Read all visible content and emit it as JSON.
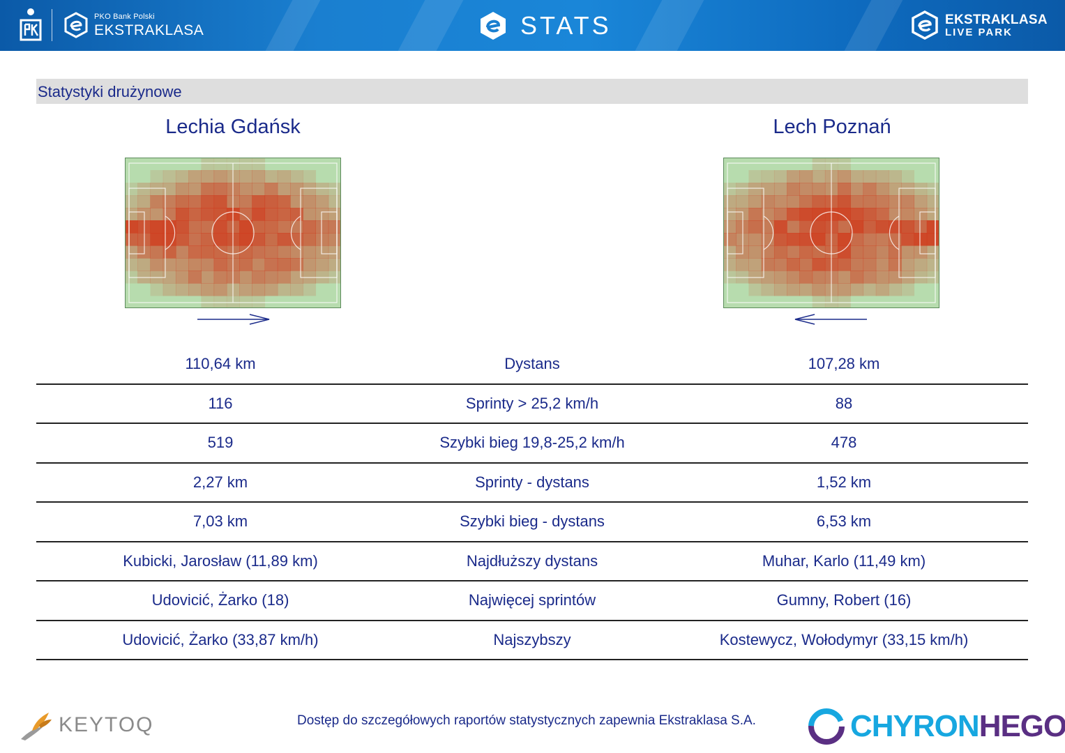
{
  "header": {
    "brand_small": "PKO Bank Polski",
    "brand_big": "EKSTRAKLASA",
    "title": "STATS",
    "live_park_line1": "EKSTRAKLASA",
    "live_park_line2": "LIVE PARK",
    "colors": {
      "bar": "#1a7fd0",
      "text": "#ffffff"
    }
  },
  "section": {
    "title": "Statystyki drużynowe"
  },
  "teams": {
    "home": {
      "name": "Lechia Gdańsk",
      "direction": "right"
    },
    "away": {
      "name": "Lech Poznań",
      "direction": "left"
    }
  },
  "stats": [
    {
      "home": "110,64 km",
      "label": "Dystans",
      "away": "107,28 km"
    },
    {
      "home": "116",
      "label": "Sprinty > 25,2 km/h",
      "away": "88"
    },
    {
      "home": "519",
      "label": "Szybki bieg 19,8-25,2 km/h",
      "away": "478"
    },
    {
      "home": "2,27 km",
      "label": "Sprinty - dystans",
      "away": "1,52 km"
    },
    {
      "home": "7,03 km",
      "label": "Szybki bieg - dystans",
      "away": "6,53 km"
    },
    {
      "home": "Kubicki, Jarosław (11,89 km)",
      "label": "Najdłuższy dystans",
      "away": "Muhar, Karlo (11,49 km)"
    },
    {
      "home": "Udovicić, Żarko (18)",
      "label": "Najwięcej sprintów",
      "away": "Gumny, Robert (16)"
    },
    {
      "home": "Udovicić, Żarko (33,87 km/h)",
      "label": "Najszybszy",
      "away": "Kostewycz, Wołodymyr (33,15 km/h)"
    }
  ],
  "footer": {
    "note": "Dostęp do szczegółowych raportów statystycznych zapewnia Ekstraklasa S.A.",
    "left_logo": "KEYTOQ",
    "right_logo_a": "CHYRON",
    "right_logo_b": "HEGO"
  },
  "colors": {
    "text": "#1a2a8a",
    "pitch": "#b7dcae",
    "heat": "#d0371a",
    "section_bar": "#dedede"
  }
}
